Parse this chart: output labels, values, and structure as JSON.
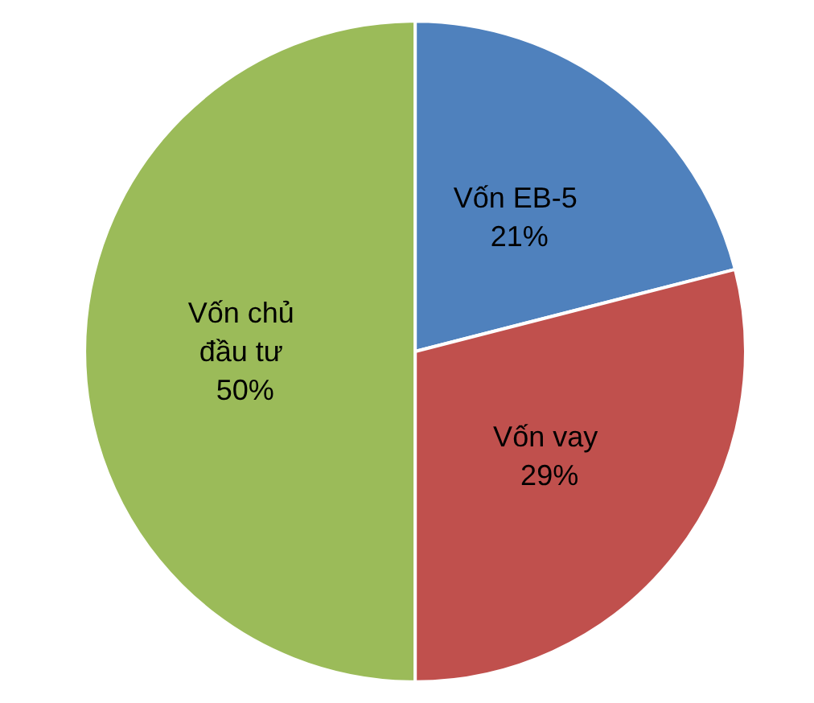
{
  "chart_data": {
    "type": "pie",
    "categories": [
      "Vốn EB-5",
      "Vốn vay",
      "Vốn chủ đầu tư"
    ],
    "values": [
      21,
      29,
      50
    ],
    "colors": [
      "#4f81bd",
      "#c0504d",
      "#9bbb59"
    ],
    "value_labels": [
      "21%",
      "29%",
      "50%"
    ],
    "legend": false
  }
}
